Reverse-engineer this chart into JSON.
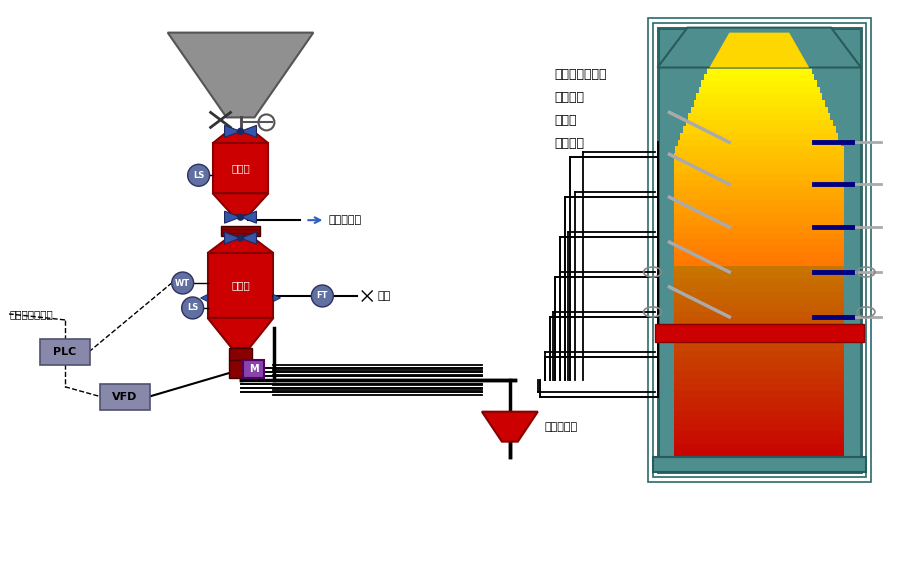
{
  "bg_color": "#FFFFFF",
  "text_labels": {
    "liu_hua": "流化加压气",
    "qi_yuan": "气源",
    "shou_liao": "收料罐",
    "pen_chui": "喷吹罐",
    "guan_lu": "管路分配器",
    "plc": "PLC",
    "vfd": "VFD",
    "m_label": "M",
    "ls1": "LS",
    "ls2": "LS",
    "wt": "WT",
    "ft": "FT",
    "ji_liao": "给料量连续可调",
    "app_list": "循环流化床锅炉\n炼铁高炉\n熔炼炉\n炼钢电炉"
  },
  "colors": {
    "red": "#CC0000",
    "gray": "#888888",
    "dark_gray": "#555555",
    "teal": "#4E8E8E",
    "plc_box": "#8888AA",
    "vfd_box": "#8888AA",
    "m_box": "#8844AA",
    "sensor_circle": "#6070A0",
    "black": "#000000",
    "dark_blue": "#000080",
    "nozzle_gray": "#AAAAAA",
    "flange_dark": "#660000"
  }
}
